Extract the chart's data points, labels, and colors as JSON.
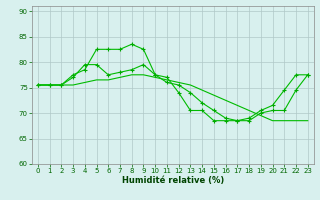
{
  "xlabel": "Humidité relative (%)",
  "bg_color": "#d8f0ee",
  "grid_color": "#b0c8c8",
  "line_color": "#00bb00",
  "marker_color": "#00aa00",
  "xlim": [
    -0.5,
    23.5
  ],
  "ylim": [
    60,
    91
  ],
  "yticks": [
    60,
    65,
    70,
    75,
    80,
    85,
    90
  ],
  "xticks": [
    0,
    1,
    2,
    3,
    4,
    5,
    6,
    7,
    8,
    9,
    10,
    11,
    12,
    13,
    14,
    15,
    16,
    17,
    18,
    19,
    20,
    21,
    22,
    23
  ],
  "lines": [
    {
      "y": [
        75.5,
        75.5,
        75.5,
        77.5,
        78.5,
        82.5,
        82.5,
        82.5,
        83.5,
        82.5,
        77.5,
        77.0,
        74.0,
        70.5,
        70.5,
        68.5,
        68.5,
        68.5,
        69.0,
        70.5,
        71.5,
        74.5,
        77.5,
        77.5
      ],
      "marker": true
    },
    {
      "y": [
        75.5,
        75.5,
        75.5,
        77.0,
        79.5,
        79.5,
        77.5,
        78.0,
        78.5,
        79.5,
        77.5,
        76.0,
        75.5,
        74.0,
        72.0,
        70.5,
        69.0,
        68.5,
        68.5,
        70.0,
        70.5,
        70.5,
        74.5,
        77.5
      ],
      "marker": true
    },
    {
      "y": [
        75.5,
        75.5,
        75.5,
        75.5,
        76.0,
        76.5,
        76.5,
        77.0,
        77.5,
        77.5,
        77.0,
        76.5,
        76.0,
        75.5,
        74.5,
        73.5,
        72.5,
        71.5,
        70.5,
        69.5,
        68.5,
        68.5,
        68.5,
        68.5
      ],
      "marker": false
    }
  ],
  "xlabel_fontsize": 6.0,
  "tick_fontsize": 5.0
}
